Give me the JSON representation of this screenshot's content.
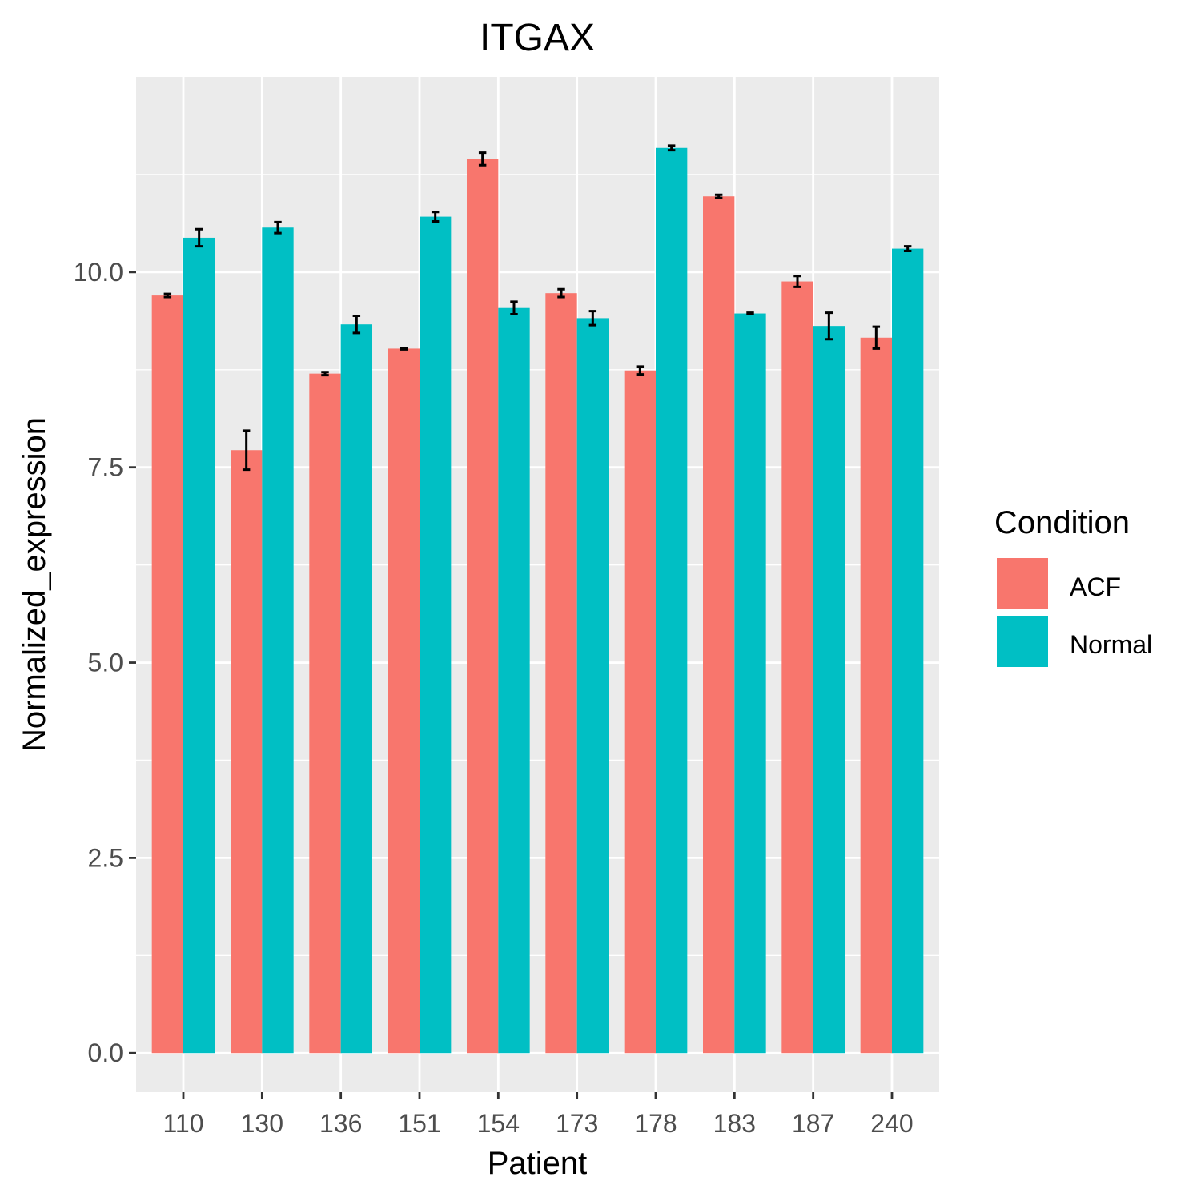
{
  "chart_data": {
    "type": "bar",
    "title": "ITGAX",
    "xlabel": "Patient",
    "ylabel": "Normalized_expression",
    "categories": [
      "110",
      "130",
      "136",
      "151",
      "154",
      "173",
      "178",
      "183",
      "187",
      "240"
    ],
    "series": [
      {
        "name": "ACF",
        "color": "#F8766D",
        "values": [
          9.7,
          7.72,
          8.7,
          9.02,
          11.45,
          9.73,
          8.74,
          10.97,
          9.88,
          9.16
        ],
        "errors": [
          0.02,
          0.25,
          0.02,
          0.01,
          0.08,
          0.05,
          0.05,
          0.02,
          0.07,
          0.14
        ]
      },
      {
        "name": "Normal",
        "color": "#00BFC4",
        "values": [
          10.44,
          10.57,
          9.33,
          10.71,
          9.54,
          9.41,
          11.59,
          9.47,
          9.31,
          10.3
        ],
        "errors": [
          0.11,
          0.07,
          0.11,
          0.06,
          0.08,
          0.09,
          0.03,
          0.01,
          0.17,
          0.03
        ]
      }
    ],
    "ylim": [
      -0.5,
      12.5
    ],
    "yticks": [
      0.0,
      2.5,
      5.0,
      7.5,
      10.0
    ],
    "ytick_labels": [
      "0.0",
      "2.5",
      "5.0",
      "7.5",
      "10.0"
    ],
    "grid": true,
    "panel_background": "#EBEBEB",
    "legend": {
      "title": "Condition",
      "placement": "right",
      "items": [
        "ACF",
        "Normal"
      ]
    }
  }
}
